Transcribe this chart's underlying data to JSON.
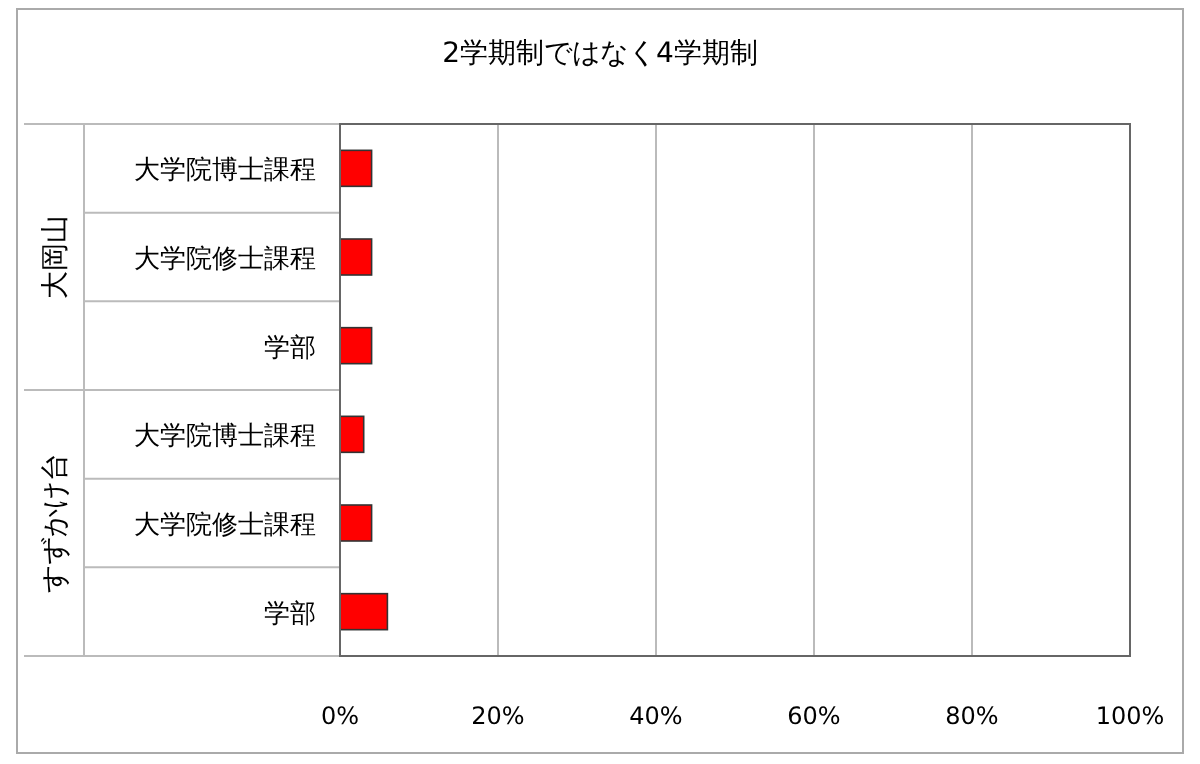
{
  "chart_data": {
    "type": "bar",
    "orientation": "horizontal",
    "title": "2学期制ではなく4学期制",
    "categories": [
      "大学院博士課程",
      "大学院修士課程",
      "学部",
      "大学院博士課程",
      "大学院修士課程",
      "学部"
    ],
    "values": [
      4,
      4,
      4,
      3,
      4,
      6
    ],
    "color": "#ff0000",
    "annotations": [
      "大岡山",
      "すずかけ台"
    ],
    "xlim": [
      0,
      100
    ],
    "xticks": [
      {
        "value": 0,
        "label": "0%"
      },
      {
        "value": 20,
        "label": "20%"
      },
      {
        "value": 40,
        "label": "40%"
      },
      {
        "value": 60,
        "label": "60%"
      },
      {
        "value": 80,
        "label": "80%"
      },
      {
        "value": 100,
        "label": "100%"
      }
    ],
    "grid": "x"
  }
}
